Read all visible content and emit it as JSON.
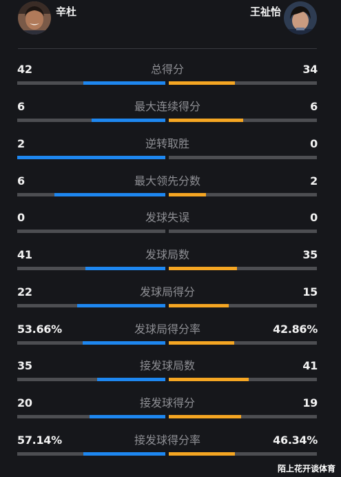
{
  "players": {
    "left": {
      "name": "辛杜",
      "avatar_icon": "player-photo-icon"
    },
    "right": {
      "name": "王祉怡",
      "avatar_icon": "player-photo-icon"
    }
  },
  "colors": {
    "left_bar": "#1e87f0",
    "right_bar": "#f5a623",
    "track": "#4d4e52",
    "label": "#8e8f94",
    "background": "#16171b"
  },
  "stats": [
    {
      "label": "总得分",
      "left": "42",
      "right": "34",
      "left_fill": 0.553,
      "right_fill": 0.447
    },
    {
      "label": "最大连续得分",
      "left": "6",
      "right": "6",
      "left_fill": 0.5,
      "right_fill": 0.5
    },
    {
      "label": "逆转取胜",
      "left": "2",
      "right": "0",
      "left_fill": 1.0,
      "right_fill": 0.0
    },
    {
      "label": "最大领先分数",
      "left": "6",
      "right": "2",
      "left_fill": 0.75,
      "right_fill": 0.25
    },
    {
      "label": "发球失误",
      "left": "0",
      "right": "0",
      "left_fill": 0.0,
      "right_fill": 0.0
    },
    {
      "label": "发球局数",
      "left": "41",
      "right": "35",
      "left_fill": 0.539,
      "right_fill": 0.461
    },
    {
      "label": "发球局得分",
      "left": "22",
      "right": "15",
      "left_fill": 0.595,
      "right_fill": 0.405
    },
    {
      "label": "发球局得分率",
      "left": "53.66%",
      "right": "42.86%",
      "left_fill": 0.556,
      "right_fill": 0.444
    },
    {
      "label": "接发球局数",
      "left": "35",
      "right": "41",
      "left_fill": 0.461,
      "right_fill": 0.539
    },
    {
      "label": "接发球得分",
      "left": "20",
      "right": "19",
      "left_fill": 0.513,
      "right_fill": 0.487
    },
    {
      "label": "接发球得分率",
      "left": "57.14%",
      "right": "46.34%",
      "left_fill": 0.552,
      "right_fill": 0.448
    }
  ],
  "watermark": "陌上花开谈体育"
}
